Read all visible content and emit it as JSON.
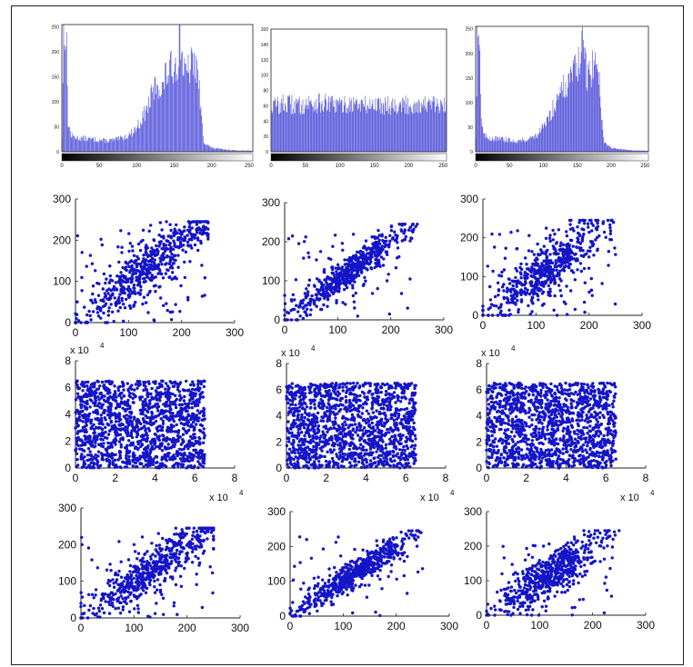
{
  "colors": {
    "marker": "#1414c8",
    "bar": "#4a4ad8",
    "bar_edge": "#2020a0",
    "axis": "#222222"
  },
  "chart_data": [
    {
      "id": "hist-1",
      "type": "bar",
      "tick_labels_x": [
        "0",
        "50",
        "100",
        "150",
        "200",
        "250"
      ],
      "tick_labels_y": [
        "0",
        "50",
        "100",
        "150",
        "200",
        "250"
      ],
      "xlim": [
        0,
        255
      ],
      "ylim": [
        0,
        255
      ],
      "colorbar": "grayscale",
      "profile": [
        [
          0,
          30
        ],
        [
          2,
          250
        ],
        [
          4,
          255
        ],
        [
          6,
          200
        ],
        [
          8,
          60
        ],
        [
          12,
          32
        ],
        [
          20,
          28
        ],
        [
          40,
          25
        ],
        [
          60,
          22
        ],
        [
          75,
          25
        ],
        [
          85,
          30
        ],
        [
          95,
          40
        ],
        [
          105,
          60
        ],
        [
          115,
          90
        ],
        [
          122,
          120
        ],
        [
          128,
          140
        ],
        [
          133,
          118
        ],
        [
          138,
          150
        ],
        [
          145,
          165
        ],
        [
          150,
          175
        ],
        [
          155,
          180
        ],
        [
          158,
          255
        ],
        [
          160,
          200
        ],
        [
          165,
          150
        ],
        [
          170,
          165
        ],
        [
          175,
          180
        ],
        [
          180,
          170
        ],
        [
          183,
          140
        ],
        [
          186,
          80
        ],
        [
          190,
          20
        ],
        [
          200,
          8
        ],
        [
          215,
          5
        ],
        [
          230,
          3
        ],
        [
          255,
          2
        ]
      ]
    },
    {
      "id": "hist-2",
      "type": "bar",
      "tick_labels_x": [
        "0",
        "50",
        "100",
        "150",
        "200",
        "250"
      ],
      "tick_labels_y": [
        "0",
        "20",
        "40",
        "60",
        "80",
        "100",
        "120",
        "140",
        "160"
      ],
      "xlim": [
        0,
        255
      ],
      "ylim": [
        0,
        160
      ],
      "colorbar": "grayscale",
      "profile": [
        [
          0,
          60
        ],
        [
          20,
          62
        ],
        [
          40,
          60
        ],
        [
          60,
          64
        ],
        [
          80,
          62
        ],
        [
          100,
          60
        ],
        [
          120,
          63
        ],
        [
          140,
          60
        ],
        [
          160,
          62
        ],
        [
          180,
          61
        ],
        [
          200,
          60
        ],
        [
          220,
          62
        ],
        [
          240,
          60
        ],
        [
          255,
          58
        ]
      ]
    },
    {
      "id": "hist-3",
      "type": "bar",
      "tick_labels_x": [
        "0",
        "50",
        "100",
        "150",
        "200",
        "250"
      ],
      "tick_labels_y": [
        "0",
        "50",
        "100",
        "150",
        "200",
        "250"
      ],
      "xlim": [
        0,
        255
      ],
      "ylim": [
        0,
        255
      ],
      "colorbar": "grayscale",
      "profile": [
        [
          0,
          30
        ],
        [
          2,
          250
        ],
        [
          4,
          255
        ],
        [
          6,
          200
        ],
        [
          8,
          60
        ],
        [
          12,
          32
        ],
        [
          20,
          28
        ],
        [
          40,
          25
        ],
        [
          60,
          22
        ],
        [
          75,
          25
        ],
        [
          85,
          30
        ],
        [
          95,
          40
        ],
        [
          105,
          60
        ],
        [
          115,
          90
        ],
        [
          122,
          120
        ],
        [
          128,
          140
        ],
        [
          133,
          118
        ],
        [
          138,
          150
        ],
        [
          145,
          165
        ],
        [
          150,
          175
        ],
        [
          155,
          180
        ],
        [
          158,
          255
        ],
        [
          160,
          200
        ],
        [
          165,
          150
        ],
        [
          170,
          165
        ],
        [
          175,
          180
        ],
        [
          180,
          170
        ],
        [
          183,
          140
        ],
        [
          186,
          80
        ],
        [
          190,
          20
        ],
        [
          200,
          8
        ],
        [
          215,
          5
        ],
        [
          230,
          3
        ],
        [
          255,
          2
        ]
      ]
    },
    {
      "id": "scatter-r2-1",
      "type": "scatter",
      "xlim": [
        0,
        300
      ],
      "ylim": [
        0,
        300
      ],
      "tick_labels_x": [
        "0",
        "100",
        "200",
        "300"
      ],
      "tick_labels_y": [
        "0",
        "100",
        "200",
        "300"
      ],
      "pattern": "correlated",
      "center": [
        140,
        140
      ],
      "spread": 60,
      "noise": 28,
      "n": 600
    },
    {
      "id": "scatter-r2-2",
      "type": "scatter",
      "xlim": [
        0,
        300
      ],
      "ylim": [
        0,
        300
      ],
      "tick_labels_x": [
        "0",
        "100",
        "200",
        "300"
      ],
      "tick_labels_y": [
        "0",
        "100",
        "200",
        "300"
      ],
      "pattern": "correlated",
      "center": [
        125,
        125
      ],
      "spread": 55,
      "noise": 18,
      "n": 600
    },
    {
      "id": "scatter-r2-3",
      "type": "scatter",
      "xlim": [
        0,
        300
      ],
      "ylim": [
        0,
        300
      ],
      "tick_labels_x": [
        "0",
        "100",
        "200",
        "300"
      ],
      "tick_labels_y": [
        "0",
        "100",
        "200",
        "300"
      ],
      "pattern": "correlated",
      "center": [
        120,
        120
      ],
      "spread": 50,
      "noise": 32,
      "n": 600
    },
    {
      "id": "scatter-r3-1",
      "type": "scatter",
      "xlim": [
        0,
        8
      ],
      "ylim": [
        0,
        8
      ],
      "tick_labels_x": [
        "0",
        "2",
        "4",
        "6",
        "8"
      ],
      "tick_labels_y": [
        "0",
        "2",
        "4",
        "6",
        "8"
      ],
      "x_exponent": "x 10",
      "x_exponent_power": "4",
      "y_exponent": "x 10",
      "y_exponent_power": "4",
      "pattern": "uniform",
      "range": [
        0,
        6.5
      ],
      "n": 1400
    },
    {
      "id": "scatter-r3-2",
      "type": "scatter",
      "xlim": [
        0,
        8
      ],
      "ylim": [
        0,
        8
      ],
      "tick_labels_x": [
        "0",
        "2",
        "4",
        "6",
        "8"
      ],
      "tick_labels_y": [
        "0",
        "2",
        "4",
        "6",
        "8"
      ],
      "x_exponent": "x 10",
      "x_exponent_power": "4",
      "y_exponent": "x 10",
      "y_exponent_power": "4",
      "pattern": "uniform",
      "range": [
        0,
        6.5
      ],
      "n": 1400
    },
    {
      "id": "scatter-r3-3",
      "type": "scatter",
      "xlim": [
        0,
        8
      ],
      "ylim": [
        0,
        8
      ],
      "tick_labels_x": [
        "0",
        "2",
        "4",
        "6",
        "8"
      ],
      "tick_labels_y": [
        "0",
        "2",
        "4",
        "6",
        "8"
      ],
      "x_exponent": "x 10",
      "x_exponent_power": "4",
      "y_exponent": "x 10",
      "y_exponent_power": "4",
      "pattern": "uniform",
      "range": [
        0,
        6.5
      ],
      "n": 1400
    },
    {
      "id": "scatter-r4-1",
      "type": "scatter",
      "xlim": [
        0,
        300
      ],
      "ylim": [
        0,
        300
      ],
      "tick_labels_x": [
        "0",
        "100",
        "200",
        "300"
      ],
      "tick_labels_y": [
        "0",
        "100",
        "200",
        "300"
      ],
      "pattern": "correlated",
      "center": [
        135,
        135
      ],
      "spread": 58,
      "noise": 26,
      "n": 600
    },
    {
      "id": "scatter-r4-2",
      "type": "scatter",
      "xlim": [
        0,
        300
      ],
      "ylim": [
        0,
        300
      ],
      "tick_labels_x": [
        "0",
        "100",
        "200",
        "300"
      ],
      "tick_labels_y": [
        "0",
        "100",
        "200",
        "300"
      ],
      "pattern": "correlated",
      "center": [
        125,
        125
      ],
      "spread": 55,
      "noise": 18,
      "n": 600
    },
    {
      "id": "scatter-r4-3",
      "type": "scatter",
      "xlim": [
        0,
        300
      ],
      "ylim": [
        0,
        300
      ],
      "tick_labels_x": [
        "0",
        "100",
        "200",
        "300"
      ],
      "tick_labels_y": [
        "0",
        "100",
        "200",
        "300"
      ],
      "pattern": "correlated",
      "center": [
        120,
        120
      ],
      "spread": 50,
      "noise": 30,
      "n": 600
    }
  ]
}
